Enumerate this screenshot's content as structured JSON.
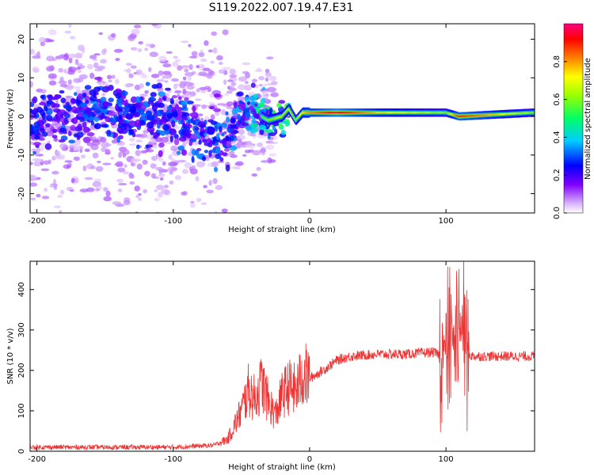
{
  "title": "S119.2022.007.19.47.E31",
  "chart_data": [
    {
      "type": "heatmap",
      "xlabel": "Height of straight line (km)",
      "ylabel": "Frequency (Hz)",
      "xlim": [
        -205,
        165
      ],
      "ylim": [
        -25,
        24
      ],
      "xticks": [
        -200,
        -100,
        0,
        100
      ],
      "yticks": [
        -20,
        -10,
        0,
        10,
        20
      ],
      "colorbar": {
        "label": "Normalized spectral amplitude",
        "range": [
          0,
          1
        ],
        "ticks": [
          "0.0",
          "0.2",
          "0.4",
          "0.6",
          "0.8"
        ],
        "colormap": "rainbow"
      },
      "ridge": {
        "description_points_x": [
          -200,
          -150,
          -100,
          -80,
          -60,
          -45,
          -30,
          -20,
          -15,
          -10,
          -5,
          0,
          20,
          50,
          100,
          110,
          165
        ],
        "center_freq": [
          -2,
          2,
          -1,
          -4,
          -5,
          2,
          -1,
          0,
          2,
          -1,
          1,
          1,
          1,
          1,
          1,
          0,
          1
        ],
        "amplitude": [
          0.25,
          0.3,
          0.3,
          0.35,
          0.3,
          0.45,
          0.6,
          0.65,
          0.7,
          0.6,
          0.75,
          0.8,
          0.95,
          0.75,
          0.6,
          0.9,
          0.6
        ]
      }
    },
    {
      "type": "line",
      "xlabel": "Height of straight line (km)",
      "ylabel": "SNR (10 * v/v)",
      "xlim": [
        -205,
        165
      ],
      "ylim": [
        0,
        470
      ],
      "xticks": [
        -200,
        -100,
        0,
        100
      ],
      "yticks": [
        0,
        100,
        200,
        300,
        400
      ],
      "color": "#ee3333",
      "series": [
        {
          "x": [
            -205,
            -150,
            -100,
            -70,
            -60,
            -50,
            -45,
            -40,
            -35,
            -30,
            -25,
            -20,
            -15,
            -10,
            -5,
            0,
            10,
            20,
            30,
            50,
            70,
            90,
            95,
            100,
            105,
            110,
            113,
            115,
            120,
            140,
            165
          ],
          "y": [
            10,
            10,
            10,
            15,
            30,
            100,
            150,
            130,
            170,
            120,
            90,
            140,
            160,
            150,
            190,
            180,
            200,
            225,
            235,
            240,
            240,
            245,
            240,
            260,
            280,
            300,
            320,
            240,
            235,
            235,
            235
          ]
        }
      ]
    }
  ]
}
